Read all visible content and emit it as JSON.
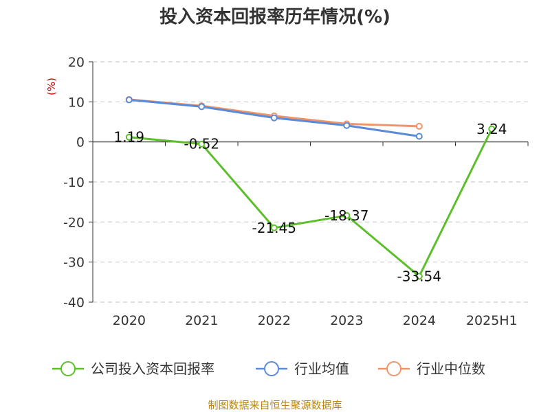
{
  "chart_data": {
    "type": "line",
    "title": "投入资本回报率历年情况(%)",
    "unit_label": "(%)",
    "categories": [
      "2020",
      "2021",
      "2022",
      "2023",
      "2024",
      "2025H1"
    ],
    "ylim": [
      -40,
      20
    ],
    "yticks": [
      20,
      10,
      0,
      -10,
      -20,
      -30,
      -40
    ],
    "grid": true,
    "legend_position": "bottom",
    "series": [
      {
        "name": "公司投入资本回报率",
        "color": "#5cbf2a",
        "values": [
          1.19,
          -0.52,
          -21.45,
          -18.37,
          -33.54,
          3.24
        ],
        "labels": [
          "1.19",
          "-0.52",
          "-21.45",
          "-18.37",
          "-33.54",
          "3.24"
        ]
      },
      {
        "name": "行业均值",
        "color": "#5b8ad6",
        "values": [
          10.5,
          8.8,
          6.0,
          4.1,
          1.4,
          null
        ]
      },
      {
        "name": "行业中位数",
        "color": "#f0956a",
        "values": [
          10.6,
          9.0,
          6.5,
          4.5,
          3.9,
          null
        ]
      }
    ],
    "source": "制图数据来自恒生聚源数据库"
  }
}
